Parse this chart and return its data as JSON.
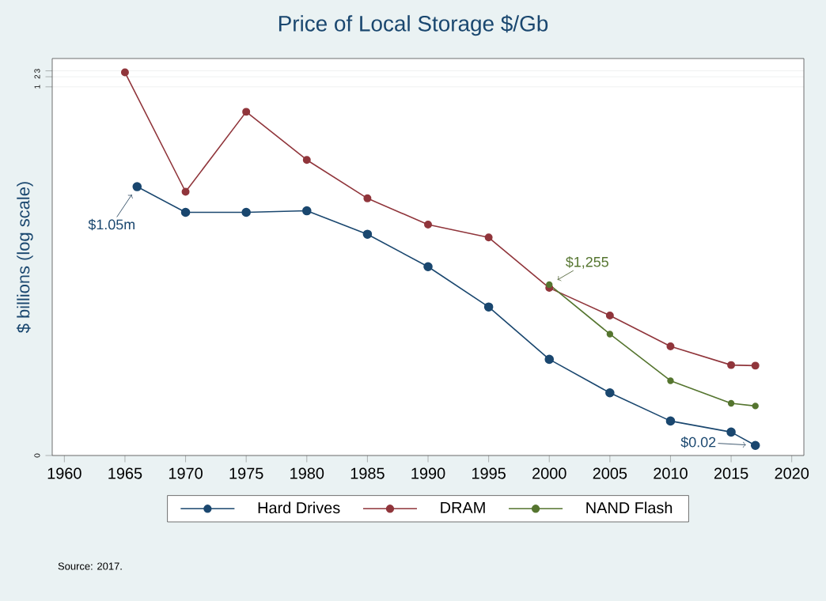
{
  "chart_data": {
    "type": "line",
    "title": "Price of Local Storage $/Gb",
    "ylabel": "$ billions (log scale)",
    "series": [
      {
        "name": "Hard Drives",
        "color": "#1a476f",
        "x": [
          1966,
          1970,
          1975,
          1980,
          1985,
          1990,
          1995,
          2000,
          2005,
          2010,
          2015,
          2017
        ],
        "values": [
          0.00105,
          0.00018,
          0.00018,
          0.0002,
          4e-05,
          4.3e-06,
          2.7e-07,
          7.4e-09,
          7.4e-10,
          1.07e-10,
          5e-11,
          2e-11
        ]
      },
      {
        "name": "DRAM",
        "color": "#90353b",
        "x": [
          1965,
          1970,
          1975,
          1980,
          1985,
          1990,
          1995,
          2000,
          2005,
          2010,
          2015,
          2017
        ],
        "values": [
          2.7,
          0.00074,
          0.18,
          0.0066,
          0.00047,
          7.8e-05,
          3.2e-05,
          1e-06,
          1.5e-07,
          1.8e-08,
          5e-09,
          4.8e-09
        ]
      },
      {
        "name": "NAND Flash",
        "color": "#55752f",
        "x": [
          2000,
          2005,
          2010,
          2015,
          2017
        ],
        "values": [
          1.255e-06,
          4.2e-08,
          1.7e-09,
          3.6e-10,
          3e-10
        ]
      }
    ],
    "log": "y",
    "xlim": [
      1959,
      2021
    ],
    "ylim": [
      1e-11,
      7
    ],
    "xticks": [
      1960,
      1965,
      1970,
      1975,
      1980,
      1985,
      1990,
      1995,
      2000,
      2005,
      2010,
      2015,
      2020
    ],
    "yticks": [
      {
        "value": 1e-11,
        "label": "0"
      },
      1,
      2,
      3
    ],
    "grid": "y",
    "legend": "bottom",
    "marker": "circle",
    "line_style": "solid",
    "annotations": [
      {
        "text": "$1.05m",
        "x": 1966,
        "y": 0.00105
      },
      {
        "text": "$1,255",
        "x": 2000,
        "y": 1.255e-06
      },
      {
        "text": "$0.02",
        "x": 2017,
        "y": 2e-11
      },
      "Source: 2017."
    ]
  }
}
